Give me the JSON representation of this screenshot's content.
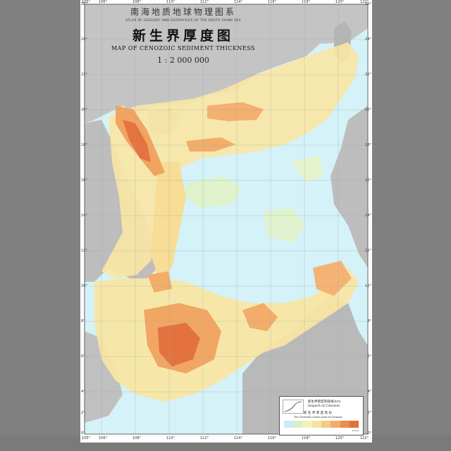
{
  "map": {
    "series_title_cn": "南海地质地球物理图系",
    "series_title_en": "ATLAS OF GEOLOGY AND GEOPHYSICS OF THE SOUTH CHINA SEA",
    "title_cn": "新生界厚度图",
    "title_en": "MAP OF CENOZOIC SEDIMENT THICKNESS",
    "scale": "1 : 2 000 000",
    "latitudes_left": [
      "26°",
      "24°",
      "22°",
      "20°",
      "18°",
      "16°",
      "14°",
      "12°",
      "10°",
      "8°",
      "6°",
      "4°",
      "2°",
      "0°"
    ],
    "latitudes_right": [
      "26°",
      "24°",
      "22°",
      "20°",
      "18°",
      "16°",
      "14°",
      "12°",
      "10°",
      "8°",
      "6°",
      "4°",
      "2°",
      "0°"
    ],
    "longitudes_top": [
      "105°",
      "106°",
      "108°",
      "110°",
      "112°",
      "114°",
      "116°",
      "118°",
      "120°",
      "122°"
    ],
    "longitudes_bottom": [
      "105°",
      "106°",
      "108°",
      "110°",
      "112°",
      "114°",
      "116°",
      "118°",
      "120°",
      "122°"
    ]
  },
  "legend": {
    "label_cn": "新生界厚度等值线(km)",
    "label_en": "Isopach of Cenozoic",
    "label2_cn": "新 生 界 厚 度 色 标",
    "label2_en": "The Thickness Colour-scale of Cenozoic",
    "unit": "12 km",
    "colors": [
      "#c9ecf6",
      "#d9f0c6",
      "#f3f3b8",
      "#f8e2a3",
      "#f6c985",
      "#f2ab6a",
      "#ec8c4f",
      "#e2703c"
    ]
  },
  "colors": {
    "sea_light": "#d2f1f7",
    "shelf": "#fbe8a6",
    "thick": "#f3a865",
    "thickest": "#e4723f",
    "land": "#bdbdbd"
  }
}
